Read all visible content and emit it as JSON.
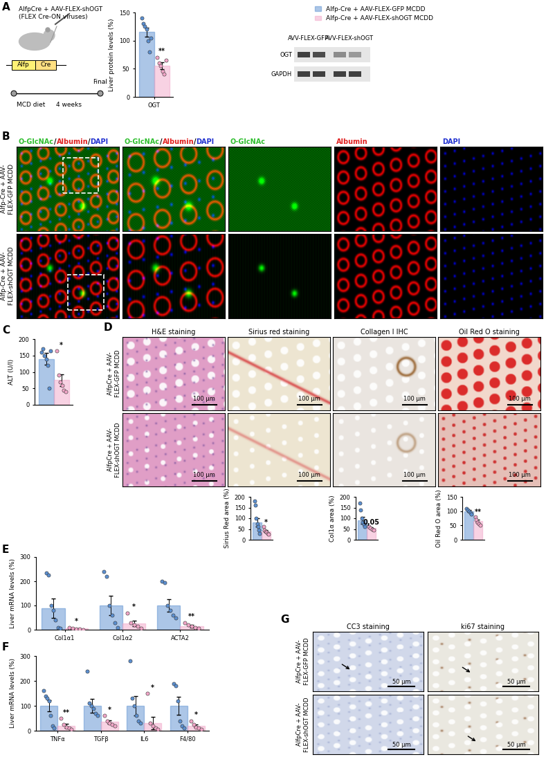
{
  "panel_labels": [
    "A",
    "B",
    "C",
    "D",
    "E",
    "F",
    "G"
  ],
  "schematic": {
    "title": "AlfpCre + AAV-FLEX-shOGT",
    "subtitle": "(FLEX Cre-ON viruses)",
    "gene_box": [
      "Alfp",
      "Cre"
    ],
    "diet": "MCD diet",
    "duration": "4 weeks",
    "end": "Final"
  },
  "western_blot": {
    "lanes": [
      "AVV-FLEX-GFP",
      "AVV-FLEX-shOGT"
    ],
    "bands": [
      "OGT",
      "GAPDH"
    ]
  },
  "immunofluorescence": {
    "columns": [
      [
        {
          "text": "O-GlcNAc",
          "color": "#2fbf2f"
        },
        {
          "text": "/",
          "color": "#000000"
        },
        {
          "text": "Albumin",
          "color": "#e02020"
        },
        {
          "text": "/",
          "color": "#000000"
        },
        {
          "text": "DAPI",
          "color": "#2030d0"
        }
      ],
      [
        {
          "text": "O-GlcNAc",
          "color": "#2fbf2f"
        },
        {
          "text": "/",
          "color": "#000000"
        },
        {
          "text": "Albumin",
          "color": "#e02020"
        },
        {
          "text": "/",
          "color": "#000000"
        },
        {
          "text": "DAPI",
          "color": "#2030d0"
        }
      ],
      [
        {
          "text": "O-GlcNAc",
          "color": "#2fbf2f"
        }
      ],
      [
        {
          "text": "Albumin",
          "color": "#e02020"
        }
      ],
      [
        {
          "text": "DAPI",
          "color": "#2030d0"
        }
      ]
    ],
    "rows": [
      "Alfp-Cre + AAV-FLEX-GFP MCDD",
      "Alfp-Cre + AAV-FLEX-shOGT MCDD"
    ]
  },
  "histology": {
    "columns": [
      "H&E staining",
      "Sirius red staining",
      "Collagen I IHC",
      "Oil Red O staining"
    ],
    "rows": [
      "AlfpCre + AAV-FLEX-GFP MCDD",
      "AlfpCre + AAV-FLEX-shOGT MCDD"
    ],
    "scale_bar": "100 µm"
  },
  "apoptosis_proliferation": {
    "columns": [
      "CC3 staining",
      "ki67 staining"
    ],
    "rows": [
      "AlfpCre + AAV-FLEX-GFP MCDD",
      "AlfpCre + AAV-FLEX-shOGT MCDD"
    ],
    "scale_bar": "50 µm"
  },
  "chart_data": [
    {
      "type": "bar",
      "ylabel": "Liver protein levels (%)",
      "categories": [
        "OGT"
      ],
      "series": [
        {
          "name": "Alfp-Cre + AAV-FLEX-GFP MCDD",
          "color": "#5b8fd0",
          "values": [
            115
          ],
          "errors": [
            8
          ],
          "points": [
            [
              140,
              130,
              125,
              120,
              100,
              80,
              105
            ]
          ]
        },
        {
          "name": "Alfp-Cre + AAV-FLEX-shOGT MCDD",
          "color": "#f2a6c8",
          "values": [
            55
          ],
          "errors": [
            6
          ],
          "points": [
            [
              70,
              60,
              55,
              45,
              40,
              65
            ]
          ]
        }
      ],
      "annotations": [
        "**"
      ],
      "ylim": [
        0,
        150
      ],
      "yticks": [
        0,
        50,
        100,
        150
      ],
      "legend": "upper right"
    },
    {
      "type": "bar",
      "ylabel": "ALT (U/l)",
      "categories": [
        null
      ],
      "series": [
        {
          "color": "#5b8fd0",
          "values": [
            140
          ],
          "errors": [
            18
          ],
          "points": [
            [
              160,
              170,
              150,
              140,
              120,
              50,
              165
            ]
          ]
        },
        {
          "color": "#f2a6c8",
          "values": [
            75
          ],
          "errors": [
            18
          ],
          "points": [
            [
              165,
              90,
              70,
              60,
              45,
              40
            ]
          ]
        }
      ],
      "annotations": [
        "*"
      ],
      "ylim": [
        0,
        200
      ],
      "yticks": [
        0,
        50,
        100,
        150,
        200
      ]
    },
    {
      "type": "bar",
      "ylabel": "Sirius Red area (%)",
      "categories": [
        null
      ],
      "series": [
        {
          "color": "#5b8fd0",
          "values": [
            80
          ],
          "errors": [
            20
          ],
          "points": [
            [
              180,
              160,
              100,
              75,
              60,
              45,
              30
            ]
          ]
        },
        {
          "color": "#f2a6c8",
          "values": [
            40
          ],
          "errors": [
            6
          ],
          "points": [
            [
              60,
              45,
              40,
              35,
              30,
              25
            ]
          ]
        }
      ],
      "annotations": [
        "*"
      ],
      "ylim": [
        0,
        200
      ],
      "yticks": [
        0,
        50,
        100,
        150,
        200
      ]
    },
    {
      "type": "bar",
      "ylabel": "Col1α area (%)",
      "categories": [
        null
      ],
      "series": [
        {
          "color": "#5b8fd0",
          "values": [
            90
          ],
          "errors": [
            17
          ],
          "points": [
            [
              170,
              140,
              100,
              80,
              70,
              60
            ]
          ]
        },
        {
          "color": "#f2a6c8",
          "values": [
            55
          ],
          "errors": [
            4
          ],
          "points": [
            [
              60,
              55,
              50,
              45
            ]
          ]
        }
      ],
      "annotations": [
        "0,05"
      ],
      "ylim": [
        0,
        200
      ],
      "yticks": [
        0,
        50,
        100,
        150,
        200
      ]
    },
    {
      "type": "bar",
      "ylabel": "Oil Red O area (%)",
      "categories": [
        null
      ],
      "series": [
        {
          "color": "#5b8fd0",
          "values": [
            100
          ],
          "errors": [
            4
          ],
          "points": [
            [
              110,
              105,
              100,
              95,
              90
            ]
          ]
        },
        {
          "color": "#f2a6c8",
          "values": [
            65
          ],
          "errors": [
            5
          ],
          "points": [
            [
              80,
              70,
              60,
              55,
              50
            ]
          ]
        }
      ],
      "annotations": [
        "**"
      ],
      "ylim": [
        0,
        150
      ],
      "yticks": [
        0,
        50,
        100,
        150
      ]
    },
    {
      "type": "bar",
      "ylabel": "Liver mRNA levels (%)",
      "categories": [
        "Col1α1",
        "Col1α2",
        "ACTA2"
      ],
      "series": [
        {
          "color": "#5b8fd0",
          "values": [
            90,
            100,
            100
          ],
          "errors": [
            40,
            40,
            25
          ],
          "points": [
            [
              235,
              225,
              100,
              80,
              40,
              10,
              5
            ],
            [
              240,
              220,
              100,
              60,
              30,
              10
            ],
            [
              200,
              195,
              100,
              80,
              60,
              50
            ]
          ]
        },
        {
          "color": "#f2a6c8",
          "values": [
            5,
            25,
            15
          ],
          "errors": [
            2,
            12,
            5
          ],
          "points": [
            [
              10,
              5,
              3,
              2,
              1
            ],
            [
              70,
              30,
              20,
              15,
              5
            ],
            [
              30,
              20,
              15,
              10,
              5
            ]
          ]
        }
      ],
      "annotations": [
        "*",
        "*",
        "**"
      ],
      "ylim": [
        0,
        300
      ],
      "yticks": [
        0,
        100,
        200,
        300
      ]
    },
    {
      "type": "bar",
      "ylabel": "Liver mRNA levels (%)",
      "categories": [
        "TNFα",
        "TGFβ",
        "IL6",
        "F4/80"
      ],
      "series": [
        {
          "color": "#5b8fd0",
          "values": [
            100,
            100,
            100,
            100
          ],
          "errors": [
            22,
            28,
            38,
            35
          ],
          "points": [
            [
              160,
              140,
              130,
              120,
              60,
              20,
              10
            ],
            [
              240,
              110,
              100,
              90,
              70,
              60
            ],
            [
              280,
              130,
              100,
              60,
              40,
              30
            ],
            [
              190,
              180,
              120,
              40,
              20,
              10
            ]
          ]
        },
        {
          "color": "#f2a6c8",
          "values": [
            20,
            35,
            30,
            20
          ],
          "errors": [
            8,
            7,
            25,
            6
          ],
          "points": [
            [
              50,
              25,
              15,
              10,
              5
            ],
            [
              60,
              40,
              30,
              25,
              20
            ],
            [
              150,
              30,
              20,
              10,
              5
            ],
            [
              40,
              25,
              15,
              10,
              5
            ]
          ]
        }
      ],
      "annotations": [
        "**",
        "*",
        "*",
        "*"
      ],
      "ylim": [
        0,
        300
      ],
      "yticks": [
        0,
        100,
        200,
        300
      ]
    }
  ]
}
